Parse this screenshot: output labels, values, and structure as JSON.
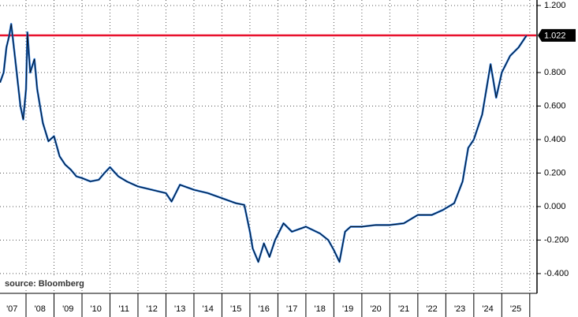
{
  "chart_data": {
    "type": "line",
    "source": "source: Bloomberg",
    "x": [
      2007.07,
      2007.2,
      2007.3,
      2007.4,
      2007.47,
      2007.6,
      2007.7,
      2007.8,
      2007.9,
      2008.0,
      2008.05,
      2008.15,
      2008.3,
      2008.4,
      2008.5,
      2008.6,
      2008.8,
      2009.0,
      2009.2,
      2009.4,
      2009.6,
      2009.8,
      2010.0,
      2010.3,
      2010.6,
      2010.8,
      2011.0,
      2011.3,
      2011.6,
      2012.0,
      2012.5,
      2013.0,
      2013.2,
      2013.5,
      2014.0,
      2014.5,
      2015.0,
      2015.5,
      2015.8,
      2016.0,
      2016.1,
      2016.3,
      2016.5,
      2016.7,
      2016.9,
      2017.2,
      2017.5,
      2018.0,
      2018.5,
      2018.8,
      2019.0,
      2019.2,
      2019.4,
      2019.6,
      2020.0,
      2020.5,
      2021.0,
      2021.5,
      2022.0,
      2022.5,
      2022.9,
      2023.3,
      2023.6,
      2023.8,
      2024.0,
      2024.3,
      2024.6,
      2024.8,
      2025.0,
      2025.3,
      2025.6,
      2025.88
    ],
    "series": [
      {
        "color": "#1f6fd1",
        "edge_color": "#000000",
        "values": [
          0.74,
          0.8,
          0.95,
          1.02,
          1.09,
          0.9,
          0.75,
          0.6,
          0.52,
          0.7,
          1.04,
          0.8,
          0.88,
          0.7,
          0.6,
          0.5,
          0.39,
          0.42,
          0.3,
          0.25,
          0.22,
          0.18,
          0.17,
          0.15,
          0.16,
          0.2,
          0.235,
          0.18,
          0.15,
          0.12,
          0.1,
          0.08,
          0.03,
          0.13,
          0.1,
          0.08,
          0.05,
          0.02,
          0.01,
          -0.15,
          -0.25,
          -0.33,
          -0.22,
          -0.3,
          -0.2,
          -0.1,
          -0.15,
          -0.12,
          -0.16,
          -0.2,
          -0.26,
          -0.33,
          -0.15,
          -0.12,
          -0.12,
          -0.11,
          -0.11,
          -0.1,
          -0.05,
          -0.05,
          -0.02,
          0.02,
          0.15,
          0.35,
          0.4,
          0.55,
          0.85,
          0.65,
          0.8,
          0.9,
          0.95,
          1.02
        ]
      }
    ],
    "reference_line": {
      "value": 1.022,
      "color": "#e8112d"
    },
    "xlim": [
      2007.07,
      2026.23
    ],
    "ylim": [
      -0.518,
      1.233
    ],
    "xticks": [
      {
        "value": 2007.5,
        "label": "'07"
      },
      {
        "value": 2008.5,
        "label": "'08"
      },
      {
        "value": 2009.5,
        "label": "'09"
      },
      {
        "value": 2010.5,
        "label": "'10"
      },
      {
        "value": 2011.5,
        "label": "'11"
      },
      {
        "value": 2012.5,
        "label": "'12"
      },
      {
        "value": 2013.5,
        "label": "'13"
      },
      {
        "value": 2014.5,
        "label": "'14"
      },
      {
        "value": 2015.5,
        "label": "'15"
      },
      {
        "value": 2016.5,
        "label": "'16"
      },
      {
        "value": 2017.5,
        "label": "'17"
      },
      {
        "value": 2018.5,
        "label": "'18"
      },
      {
        "value": 2019.5,
        "label": "'19"
      },
      {
        "value": 2020.5,
        "label": "'20"
      },
      {
        "value": 2021.5,
        "label": "'21"
      },
      {
        "value": 2022.5,
        "label": "'22"
      },
      {
        "value": 2023.5,
        "label": "'23"
      },
      {
        "value": 2024.5,
        "label": "'24"
      },
      {
        "value": 2025.5,
        "label": "'25"
      }
    ],
    "x_grid": [
      2008,
      2009,
      2010,
      2011,
      2012,
      2013,
      2014,
      2015,
      2016,
      2017,
      2018,
      2019,
      2020,
      2021,
      2022,
      2023,
      2024,
      2025,
      2026
    ],
    "yticks": [
      {
        "value": 1.2,
        "label": "1.200"
      },
      {
        "value": 0.8,
        "label": "0.800"
      },
      {
        "value": 0.6,
        "label": "0.600"
      },
      {
        "value": 0.4,
        "label": "0.400"
      },
      {
        "value": 0.2,
        "label": "0.200"
      },
      {
        "value": 0,
        "label": "0.000"
      },
      {
        "value": -0.2,
        "label": "-0.200"
      },
      {
        "value": -0.4,
        "label": "-0.400"
      }
    ],
    "grid": true
  }
}
